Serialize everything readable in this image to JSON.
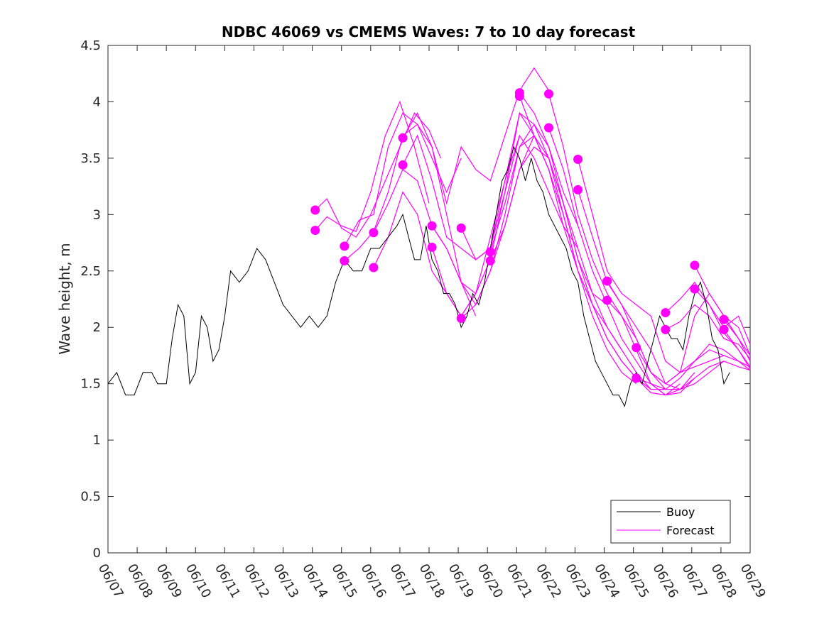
{
  "chart_data": {
    "type": "line",
    "title": "NDBC 46069 vs CMEMS Waves: 7 to 10 day forecast",
    "xlabel": "",
    "ylabel": "Wave height, m",
    "x_tick_labels": [
      "06/07",
      "06/08",
      "06/09",
      "06/10",
      "06/11",
      "06/12",
      "06/13",
      "06/14",
      "06/15",
      "06/16",
      "06/17",
      "06/18",
      "06/19",
      "06/20",
      "06/21",
      "06/22",
      "06/23",
      "06/24",
      "06/25",
      "06/26",
      "06/27",
      "06/28",
      "06/29"
    ],
    "y_tick_labels": [
      "0",
      "0.5",
      "1",
      "1.5",
      "2",
      "2.5",
      "3",
      "3.5",
      "4",
      "4.5"
    ],
    "xlim": [
      7,
      29
    ],
    "ylim": [
      0,
      4.5
    ],
    "legend": {
      "location": "bottom-right",
      "entries": [
        "Buoy",
        "Forecast"
      ]
    },
    "colors": {
      "buoy": "#000000",
      "forecast": "#ff00ff"
    },
    "series": [
      {
        "name": "Buoy",
        "x": [
          7.0,
          7.3,
          7.6,
          7.9,
          8.2,
          8.5,
          8.7,
          9.0,
          9.2,
          9.4,
          9.6,
          9.8,
          10.0,
          10.2,
          10.4,
          10.6,
          10.8,
          11.0,
          11.2,
          11.5,
          11.8,
          12.1,
          12.4,
          12.7,
          13.0,
          13.3,
          13.6,
          13.9,
          14.2,
          14.5,
          14.8,
          15.1,
          15.4,
          15.7,
          16.0,
          16.3,
          16.6,
          16.9,
          17.1,
          17.3,
          17.5,
          17.7,
          17.9,
          18.1,
          18.3,
          18.5,
          18.7,
          18.9,
          19.1,
          19.3,
          19.5,
          19.7,
          19.9,
          20.1,
          20.3,
          20.5,
          20.7,
          20.9,
          21.1,
          21.3,
          21.5,
          21.7,
          21.9,
          22.1,
          22.3,
          22.5,
          22.7,
          22.9,
          23.1,
          23.3,
          23.5,
          23.7,
          23.9,
          24.1,
          24.3,
          24.5,
          24.7,
          24.9,
          25.1,
          25.3,
          25.5,
          25.7,
          25.9,
          26.1,
          26.3,
          26.5,
          26.7,
          26.9,
          27.1,
          27.3,
          27.5,
          27.7,
          27.9,
          28.1,
          28.3
        ],
        "y": [
          1.5,
          1.6,
          1.4,
          1.4,
          1.6,
          1.6,
          1.5,
          1.5,
          1.9,
          2.2,
          2.1,
          1.5,
          1.6,
          2.1,
          2.0,
          1.7,
          1.8,
          2.1,
          2.5,
          2.4,
          2.5,
          2.7,
          2.6,
          2.4,
          2.2,
          2.1,
          2.0,
          2.1,
          2.0,
          2.1,
          2.4,
          2.6,
          2.5,
          2.5,
          2.7,
          2.7,
          2.8,
          2.9,
          3.0,
          2.8,
          2.6,
          2.6,
          2.9,
          2.6,
          2.5,
          2.3,
          2.3,
          2.2,
          2.0,
          2.1,
          2.3,
          2.2,
          2.4,
          2.7,
          3.0,
          3.3,
          3.4,
          3.6,
          3.5,
          3.3,
          3.5,
          3.3,
          3.2,
          3.0,
          2.9,
          2.8,
          2.7,
          2.5,
          2.4,
          2.1,
          1.9,
          1.7,
          1.6,
          1.5,
          1.4,
          1.4,
          1.3,
          1.5,
          1.6,
          1.5,
          1.7,
          1.9,
          2.1,
          2.0,
          1.9,
          1.9,
          1.8,
          2.1,
          2.3,
          2.4,
          2.2,
          1.9,
          1.8,
          1.5,
          1.6
        ]
      },
      {
        "name": "Forecast",
        "x": [
          14.1,
          14.5,
          15.0,
          15.5,
          16.0,
          16.5,
          17.0,
          17.5,
          18.0,
          18.4
        ],
        "y": [
          3.04,
          3.14,
          2.88,
          2.8,
          3.0,
          3.3,
          3.6,
          3.9,
          3.75,
          3.5
        ]
      },
      {
        "name": "Forecast",
        "x": [
          14.1,
          14.5,
          15.0,
          15.5,
          16.0,
          16.5,
          17.0,
          17.5,
          18.0
        ],
        "y": [
          2.86,
          2.98,
          2.9,
          2.85,
          3.2,
          3.7,
          4.0,
          3.6,
          3.1
        ]
      },
      {
        "name": "Forecast",
        "x": [
          15.1,
          15.6,
          16.1,
          16.6,
          17.1,
          17.6,
          18.1,
          18.6,
          19.1
        ],
        "y": [
          2.72,
          2.95,
          3.0,
          3.6,
          3.9,
          3.8,
          3.5,
          3.2,
          3.5
        ]
      },
      {
        "name": "Forecast",
        "x": [
          15.1,
          15.6,
          16.1,
          16.6,
          17.1,
          17.6,
          18.1,
          18.6,
          19.1,
          19.6
        ],
        "y": [
          2.59,
          2.7,
          2.85,
          3.2,
          3.7,
          3.8,
          3.6,
          3.0,
          2.4,
          2.1
        ]
      },
      {
        "name": "Forecast",
        "x": [
          16.1,
          16.6,
          17.1,
          17.6,
          18.1,
          18.6,
          19.1,
          19.6,
          20.1
        ],
        "y": [
          2.84,
          3.1,
          3.4,
          3.3,
          2.9,
          2.7,
          2.4,
          2.3,
          2.6
        ]
      },
      {
        "name": "Forecast",
        "x": [
          16.1,
          16.6,
          17.1,
          17.6,
          18.1,
          18.6,
          19.1,
          19.6,
          20.1,
          20.6,
          21.1
        ],
        "y": [
          2.53,
          2.8,
          3.2,
          3.0,
          2.5,
          2.3,
          2.1,
          2.3,
          2.6,
          3.2,
          3.7
        ]
      },
      {
        "name": "Forecast",
        "x": [
          17.1,
          17.6,
          18.1,
          18.6,
          19.1,
          19.6,
          20.1,
          20.6,
          21.1,
          21.6,
          22.1
        ],
        "y": [
          3.68,
          3.9,
          3.6,
          3.1,
          3.6,
          3.4,
          3.3,
          3.7,
          4.1,
          4.3,
          4.1
        ]
      },
      {
        "name": "Forecast",
        "x": [
          17.1,
          17.6,
          18.1,
          18.6,
          19.1,
          19.6,
          20.1,
          20.6,
          21.1,
          21.6,
          22.1
        ],
        "y": [
          3.44,
          3.7,
          3.3,
          2.8,
          2.7,
          2.6,
          2.7,
          3.2,
          3.9,
          3.7,
          3.4
        ]
      },
      {
        "name": "Forecast",
        "x": [
          18.1,
          18.6,
          19.1,
          19.6,
          20.1,
          20.6,
          21.1,
          21.6,
          22.1,
          22.6,
          23.1
        ],
        "y": [
          2.9,
          2.7,
          2.4,
          2.2,
          2.5,
          3.0,
          3.6,
          3.8,
          3.6,
          3.2,
          2.9
        ]
      },
      {
        "name": "Forecast",
        "x": [
          18.1,
          18.6,
          19.1,
          19.6,
          20.1,
          20.6,
          21.1,
          21.6,
          22.1,
          22.6,
          23.1
        ],
        "y": [
          2.71,
          2.3,
          2.1,
          2.3,
          2.8,
          3.3,
          3.7,
          3.5,
          3.2,
          2.9,
          2.7
        ]
      },
      {
        "name": "Forecast",
        "x": [
          19.1,
          19.6,
          20.1,
          20.6,
          21.1,
          21.6,
          22.1,
          22.6,
          23.1,
          23.6,
          24.1
        ],
        "y": [
          2.88,
          2.6,
          2.7,
          3.3,
          3.9,
          3.8,
          3.5,
          3.1,
          2.6,
          2.3,
          2.2
        ]
      },
      {
        "name": "Forecast",
        "x": [
          19.1,
          19.6,
          20.1,
          20.6,
          21.1,
          21.6,
          22.1,
          22.6,
          23.1,
          23.6,
          24.1,
          24.6
        ],
        "y": [
          2.08,
          2.2,
          2.5,
          2.9,
          3.4,
          3.7,
          3.5,
          3.1,
          2.6,
          2.2,
          2.0,
          1.8
        ]
      },
      {
        "name": "Forecast",
        "x": [
          20.1,
          20.6,
          21.1,
          21.6,
          22.1,
          22.6,
          23.1,
          23.6,
          24.1,
          24.6,
          25.1
        ],
        "y": [
          2.67,
          3.1,
          3.6,
          3.7,
          3.4,
          3.0,
          2.5,
          2.1,
          1.8,
          1.6,
          1.5
        ]
      },
      {
        "name": "Forecast",
        "x": [
          20.1,
          20.6,
          21.1,
          21.6,
          22.1,
          22.6,
          23.1,
          23.6,
          24.1,
          24.6,
          25.1,
          25.6
        ],
        "y": [
          2.59,
          2.9,
          3.4,
          3.6,
          3.5,
          3.0,
          2.5,
          2.2,
          1.9,
          1.7,
          1.55,
          1.45
        ]
      },
      {
        "name": "Forecast",
        "x": [
          21.1,
          21.6,
          22.1,
          22.6,
          23.1,
          23.6,
          24.1,
          24.6,
          25.1,
          25.6,
          26.1
        ],
        "y": [
          4.08,
          3.9,
          3.6,
          3.1,
          2.7,
          2.3,
          2.0,
          1.8,
          1.6,
          1.45,
          1.45
        ]
      },
      {
        "name": "Forecast",
        "x": [
          21.1,
          21.6,
          22.1,
          22.6,
          23.1,
          23.6,
          24.1,
          24.6,
          25.1,
          25.6,
          26.1,
          26.6
        ],
        "y": [
          4.05,
          3.7,
          3.4,
          2.9,
          2.5,
          2.2,
          1.9,
          1.7,
          1.55,
          1.42,
          1.4,
          1.5
        ]
      },
      {
        "name": "Forecast",
        "x": [
          22.1,
          22.6,
          23.1,
          23.6,
          24.1,
          24.6,
          25.1,
          25.6,
          26.1,
          26.6,
          27.1
        ],
        "y": [
          4.07,
          3.6,
          3.0,
          2.6,
          2.3,
          2.1,
          1.9,
          1.6,
          1.45,
          1.45,
          1.6
        ]
      },
      {
        "name": "Forecast",
        "x": [
          22.1,
          22.6,
          23.1,
          23.6,
          24.1,
          24.6,
          25.1,
          25.6,
          26.1,
          26.6,
          27.1
        ],
        "y": [
          3.77,
          3.4,
          2.9,
          2.5,
          2.2,
          1.9,
          1.7,
          1.5,
          1.4,
          1.42,
          1.55
        ]
      },
      {
        "name": "Forecast",
        "x": [
          23.1,
          23.6,
          24.1,
          24.6,
          25.1,
          25.6,
          26.1,
          26.6,
          27.1,
          27.6,
          28.1
        ],
        "y": [
          3.49,
          3.0,
          2.5,
          2.3,
          2.2,
          2.1,
          1.7,
          1.6,
          1.65,
          1.7,
          1.75
        ]
      },
      {
        "name": "Forecast",
        "x": [
          23.1,
          23.6,
          24.1,
          24.6,
          25.1,
          25.6,
          26.1,
          26.6,
          27.1,
          27.6,
          28.1
        ],
        "y": [
          3.22,
          2.8,
          2.4,
          2.2,
          2.0,
          1.8,
          1.5,
          1.45,
          1.5,
          1.6,
          1.7
        ]
      },
      {
        "name": "Forecast",
        "x": [
          24.1,
          24.6,
          25.1,
          25.6,
          26.1,
          26.6,
          27.1,
          27.6,
          28.1,
          28.6,
          29.0
        ],
        "y": [
          2.41,
          2.2,
          1.9,
          1.6,
          1.5,
          1.6,
          1.7,
          1.8,
          1.75,
          1.7,
          1.65
        ]
      },
      {
        "name": "Forecast",
        "x": [
          24.1,
          24.6,
          25.1,
          25.6,
          26.1,
          26.6,
          27.1,
          27.6,
          28.1,
          28.6,
          29.0
        ],
        "y": [
          2.24,
          2.1,
          1.8,
          1.5,
          1.4,
          1.45,
          1.55,
          1.65,
          1.7,
          1.65,
          1.62
        ]
      },
      {
        "name": "Forecast",
        "x": [
          25.1,
          25.6,
          26.1,
          26.6,
          27.1,
          27.6,
          28.1,
          28.6,
          29.0
        ],
        "y": [
          1.82,
          1.6,
          1.5,
          1.6,
          2.1,
          2.3,
          2.1,
          1.9,
          1.75
        ]
      },
      {
        "name": "Forecast",
        "x": [
          25.1,
          25.6,
          26.1,
          26.6,
          27.1,
          27.6,
          28.1,
          28.6,
          29.0
        ],
        "y": [
          1.55,
          1.5,
          1.45,
          1.55,
          1.7,
          1.85,
          1.8,
          1.7,
          1.62
        ]
      },
      {
        "name": "Forecast",
        "x": [
          26.1,
          26.6,
          27.1,
          27.6,
          28.1,
          28.6,
          29.0
        ],
        "y": [
          2.13,
          2.25,
          2.4,
          2.2,
          2.0,
          2.1,
          1.85
        ]
      },
      {
        "name": "Forecast",
        "x": [
          26.1,
          26.6,
          27.1,
          27.6,
          28.1,
          28.6,
          29.0
        ],
        "y": [
          1.98,
          2.05,
          2.2,
          2.1,
          1.9,
          1.85,
          1.72
        ]
      },
      {
        "name": "Forecast",
        "x": [
          27.1,
          27.6,
          28.1,
          28.6,
          29.0
        ],
        "y": [
          2.55,
          2.3,
          2.1,
          2.0,
          1.75
        ]
      },
      {
        "name": "Forecast",
        "x": [
          27.1,
          27.6,
          28.1,
          28.6,
          29.0
        ],
        "y": [
          2.34,
          2.2,
          1.95,
          1.8,
          1.65
        ]
      },
      {
        "name": "Forecast",
        "x": [
          28.1,
          28.6,
          29.0
        ],
        "y": [
          2.07,
          1.9,
          1.7
        ]
      },
      {
        "name": "Forecast",
        "x": [
          28.1,
          28.6,
          29.0
        ],
        "y": [
          1.98,
          1.8,
          1.63
        ]
      }
    ]
  }
}
